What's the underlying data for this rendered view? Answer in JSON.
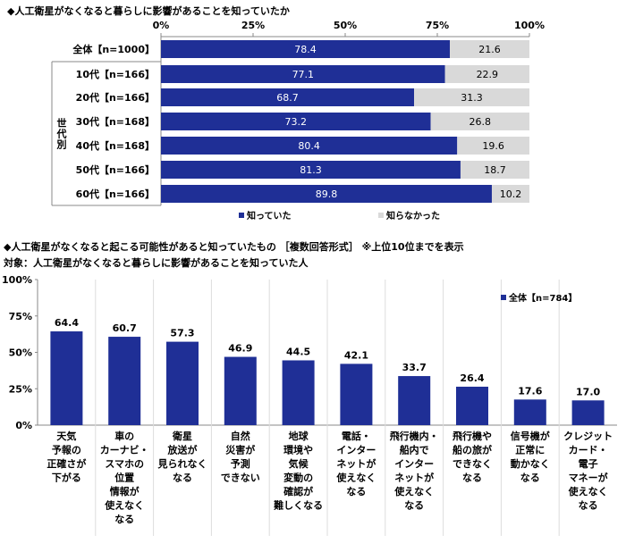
{
  "chart_data": [
    {
      "type": "bar",
      "orientation": "horizontal-stacked",
      "title": "◆人工衛星がなくなると暮らしに影響があることを知っていたか",
      "xlim": [
        0,
        100
      ],
      "xticks": [
        "0%",
        "25%",
        "50%",
        "75%",
        "100%"
      ],
      "group_label": "世代別",
      "categories": [
        "全体【n=1000】",
        "10代【n=166】",
        "20代【n=166】",
        "30代【n=168】",
        "40代【n=168】",
        "50代【n=166】",
        "60代【n=166】"
      ],
      "series": [
        {
          "name": "知っていた",
          "color": "#1f2f96",
          "values": [
            78.4,
            77.1,
            68.7,
            73.2,
            80.4,
            81.3,
            89.8
          ]
        },
        {
          "name": "知らなかった",
          "color": "#d9d9d9",
          "values": [
            21.6,
            22.9,
            31.3,
            26.8,
            19.6,
            18.7,
            10.2
          ]
        }
      ],
      "legend": "bottom"
    },
    {
      "type": "bar",
      "title": "◆人工衛星がなくなると起こる可能性があると知っていたもの ［複数回答形式］ ※上位10位までを表示",
      "subtitle": "対象：人工衛星がなくなると暮らしに影響があることを知っていた人",
      "ylim": [
        0,
        100
      ],
      "yticks": [
        "0%",
        "25%",
        "50%",
        "75%",
        "100%"
      ],
      "categories": [
        "天気\n予報の\n正確さが\n下がる",
        "車の\nカーナビ・\nスマホの\n位置\n情報が\n使えなく\nなる",
        "衛星\n放送が\n見られなく\nなる",
        "自然\n災害が\n予測\nできない",
        "地球\n環境や\n気候\n変動の\n確認が\n難しくなる",
        "電話・\nインター\nネットが\n使えなく\nなる",
        "飛行機内・\n船内で\nインター\nネットが\n使えなく\nなる",
        "飛行機や\n船の旅が\nできなく\nなる",
        "信号機が\n正常に\n動かなく\nなる",
        "クレジット\nカード・\n電子\nマネーが\n使えなく\nなる"
      ],
      "series": [
        {
          "name": "全体【n=784】",
          "color": "#1f2f96",
          "values": [
            64.4,
            60.7,
            57.3,
            46.9,
            44.5,
            42.1,
            33.7,
            26.4,
            17.6,
            17.0
          ]
        }
      ],
      "legend": "top-right"
    }
  ]
}
